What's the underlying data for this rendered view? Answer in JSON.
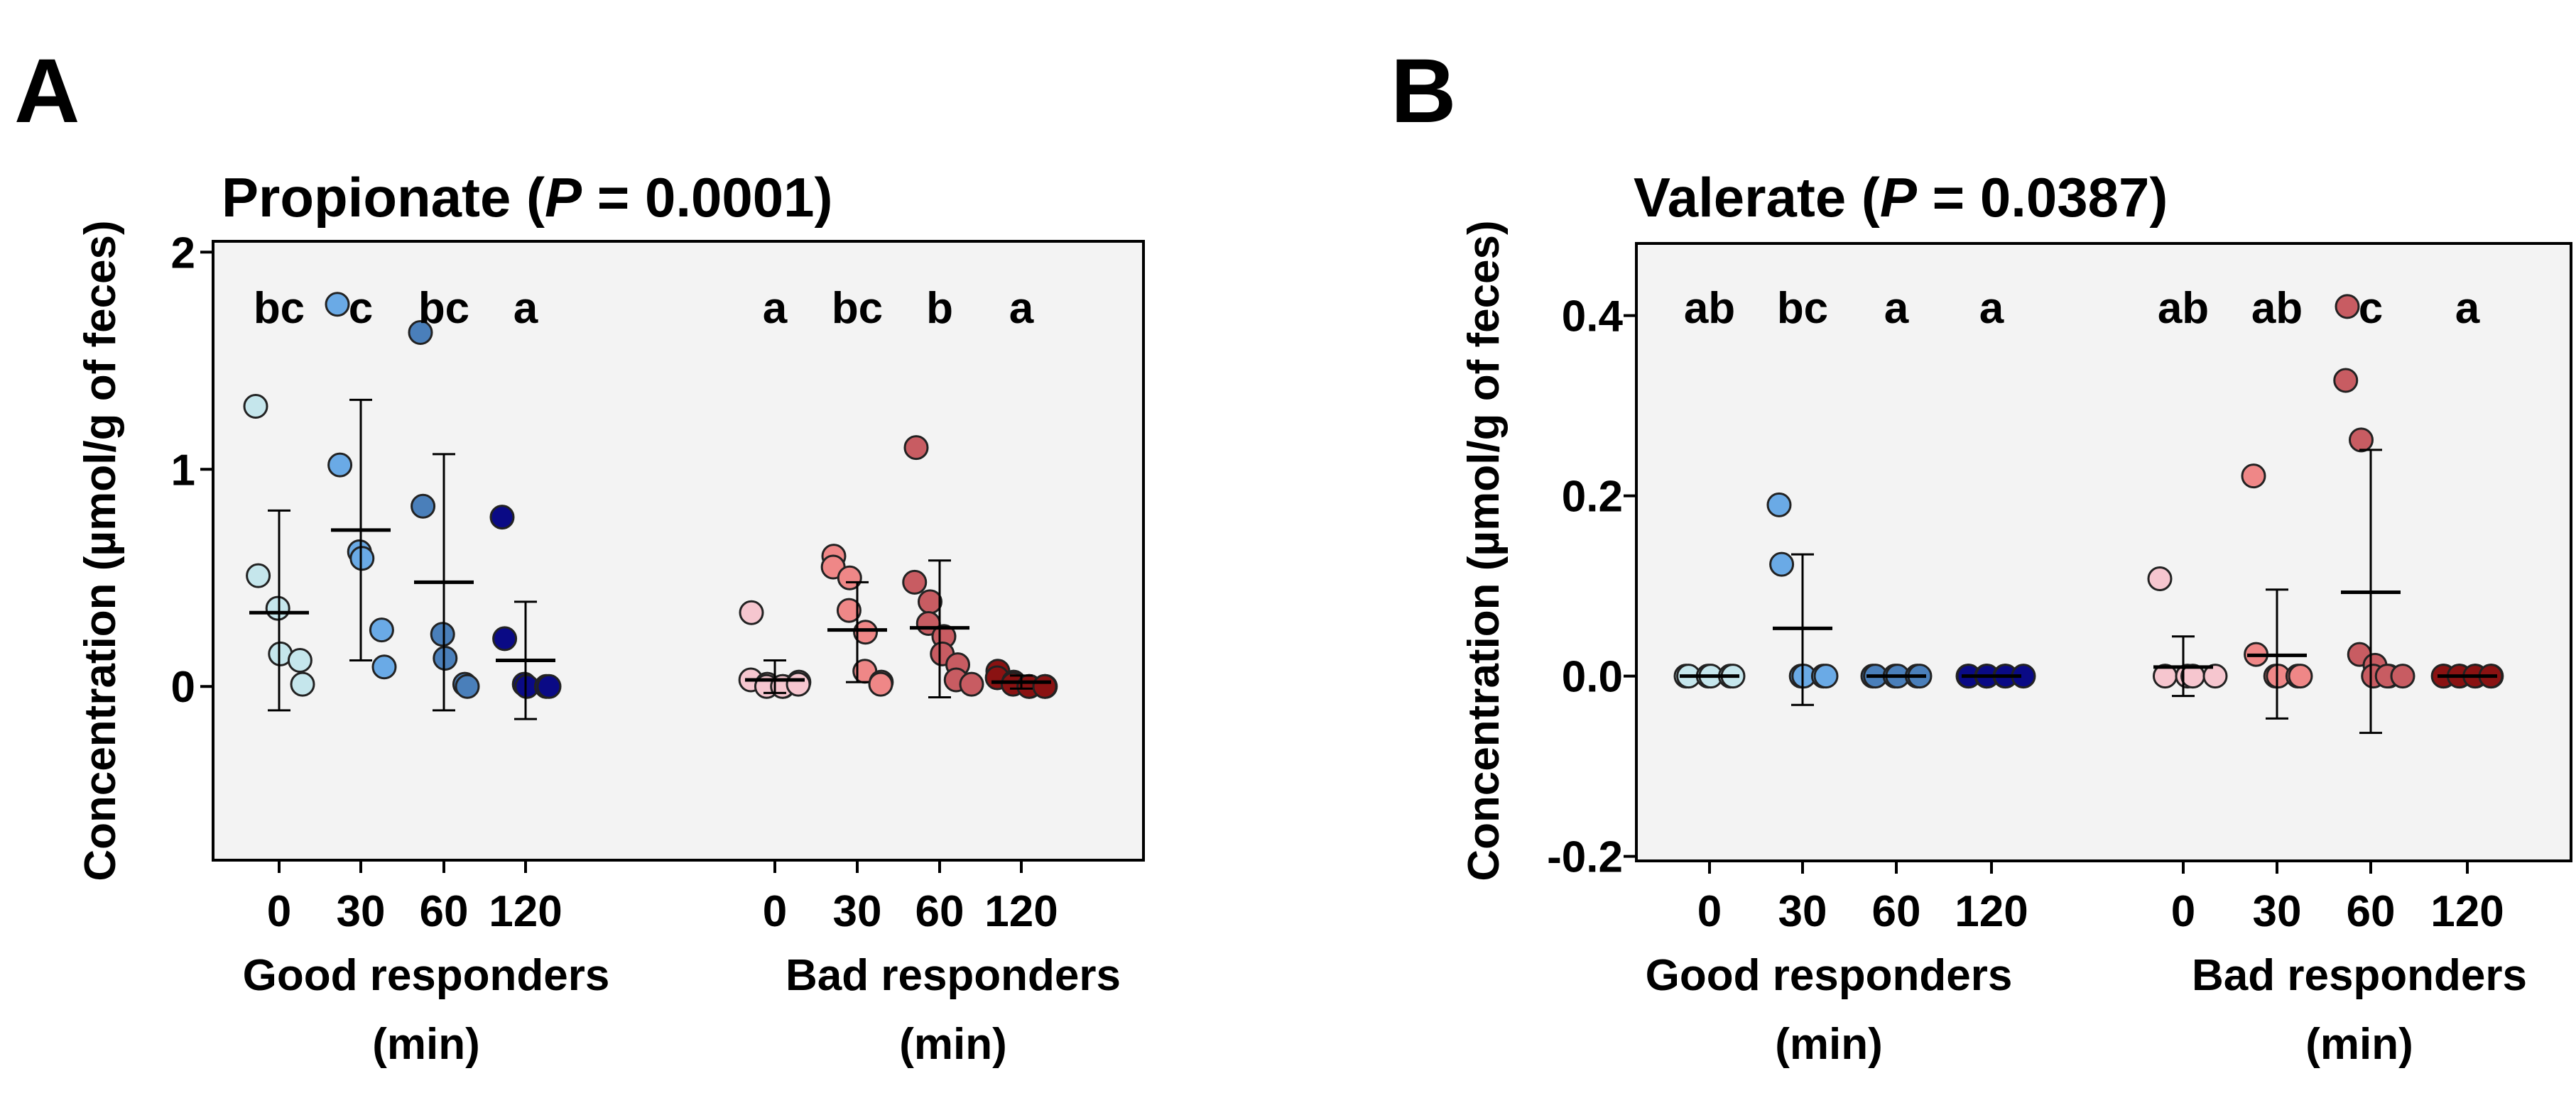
{
  "panels": [
    {
      "letter": "A",
      "title_prefix": "Propionate (",
      "title_p": "P",
      "title_suffix": " = 0.0001)",
      "ylabel": "Concentration (µmol/g of feces)"
    },
    {
      "letter": "B",
      "title_prefix": "Valerate (",
      "title_p": "P",
      "title_suffix": " = 0.0387)",
      "ylabel": "Concentration (µmol/g of feces)"
    }
  ],
  "groups": {
    "good": "Good responders",
    "bad": "Bad responders",
    "unit": "(min)"
  },
  "colors": {
    "good": [
      "#c5e6ec",
      "#6aaae6",
      "#4a7fba",
      "#0a0a85"
    ],
    "bad": [
      "#f6c6cf",
      "#ef8787",
      "#c85c62",
      "#8a1212"
    ],
    "plot_bg": "#f3f3f3"
  },
  "chart_data": [
    {
      "type": "scatter",
      "title": "Propionate (P = 0.0001)",
      "xlabel": "",
      "ylabel": "Concentration (µmol/g of feces)",
      "ylim": [
        -0.8,
        2.05
      ],
      "yticks": [
        0,
        1,
        2
      ],
      "ytick_labels": [
        "0",
        "1",
        "2"
      ],
      "categories": [
        "0",
        "30",
        "60",
        "120",
        "0",
        "30",
        "60",
        "120"
      ],
      "groups": [
        "Good responders",
        "Good responders",
        "Good responders",
        "Good responders",
        "Bad responders",
        "Bad responders",
        "Bad responders",
        "Bad responders"
      ],
      "letters": [
        "bc",
        "c",
        "bc",
        "a",
        "a",
        "bc",
        "b",
        "a"
      ],
      "mean": [
        0.34,
        0.72,
        0.48,
        0.12,
        0.03,
        0.26,
        0.27,
        0.02
      ],
      "sd_low": [
        -0.11,
        0.12,
        -0.11,
        -0.15,
        -0.03,
        0.02,
        -0.05,
        -0.01
      ],
      "sd_high": [
        0.81,
        1.32,
        1.07,
        0.39,
        0.12,
        0.48,
        0.58,
        0.05
      ],
      "points": [
        [
          1.29,
          0.51,
          0.36,
          0.15,
          0.12,
          0.01
        ],
        [
          1.76,
          1.02,
          0.62,
          0.59,
          0.26,
          0.09
        ],
        [
          1.63,
          0.83,
          0.24,
          0.13,
          0.01,
          0.0
        ],
        [
          0.78,
          0.22,
          0.01,
          0.0,
          0.0,
          0.0
        ],
        [
          0.34,
          0.03,
          0.01,
          0.0,
          0.0,
          0.0,
          0.02,
          0.01
        ],
        [
          0.6,
          0.55,
          0.5,
          0.35,
          0.25,
          0.07,
          0.02,
          0.01
        ],
        [
          1.1,
          0.48,
          0.39,
          0.29,
          0.23,
          0.15,
          0.1,
          0.03,
          0.01
        ],
        [
          0.07,
          0.04,
          0.02,
          0.01,
          0.0,
          0.0,
          0.0,
          0.0
        ]
      ]
    },
    {
      "type": "scatter",
      "title": "Valerate (P = 0.0387)",
      "xlabel": "",
      "ylabel": "Concentration (µmol/g of feces)",
      "ylim": [
        -0.205,
        0.48
      ],
      "yticks": [
        -0.2,
        0.0,
        0.2,
        0.4
      ],
      "ytick_labels": [
        "-0.2",
        "0.0",
        "0.2",
        "0.4"
      ],
      "categories": [
        "0",
        "30",
        "60",
        "120",
        "0",
        "30",
        "60",
        "120"
      ],
      "groups": [
        "Good responders",
        "Good responders",
        "Good responders",
        "Good responders",
        "Bad responders",
        "Bad responders",
        "Bad responders",
        "Bad responders"
      ],
      "letters": [
        "ab",
        "bc",
        "a",
        "a",
        "ab",
        "ab",
        "c",
        "a"
      ],
      "mean": [
        0.0,
        0.053,
        0.0,
        0.0,
        0.01,
        0.023,
        0.093,
        0.0
      ],
      "sd_low": [
        0.0,
        -0.032,
        0.0,
        0.0,
        -0.022,
        -0.047,
        -0.063,
        0.0
      ],
      "sd_high": [
        0.0,
        0.135,
        0.0,
        0.0,
        0.044,
        0.096,
        0.251,
        0.0
      ],
      "points": [
        [
          0.0,
          0.0,
          0.0,
          0.0,
          0.0,
          0.0
        ],
        [
          0.19,
          0.124,
          0.0,
          0.0,
          0.0,
          0.0
        ],
        [
          0.0,
          0.0,
          0.0,
          0.0,
          0.0,
          0.0
        ],
        [
          0.0,
          0.0,
          0.0,
          0.0,
          0.0,
          0.0,
          0.0
        ],
        [
          0.108,
          0.0,
          0.0,
          0.0,
          0.0
        ],
        [
          0.222,
          0.024,
          0.0,
          0.0,
          0.0,
          0.0
        ],
        [
          0.41,
          0.328,
          0.262,
          0.024,
          0.012,
          0.0,
          0.0,
          0.0,
          0.0
        ],
        [
          0.0,
          0.0,
          0.0,
          0.0,
          0.0,
          0.0,
          0.0,
          0.0
        ]
      ]
    }
  ]
}
